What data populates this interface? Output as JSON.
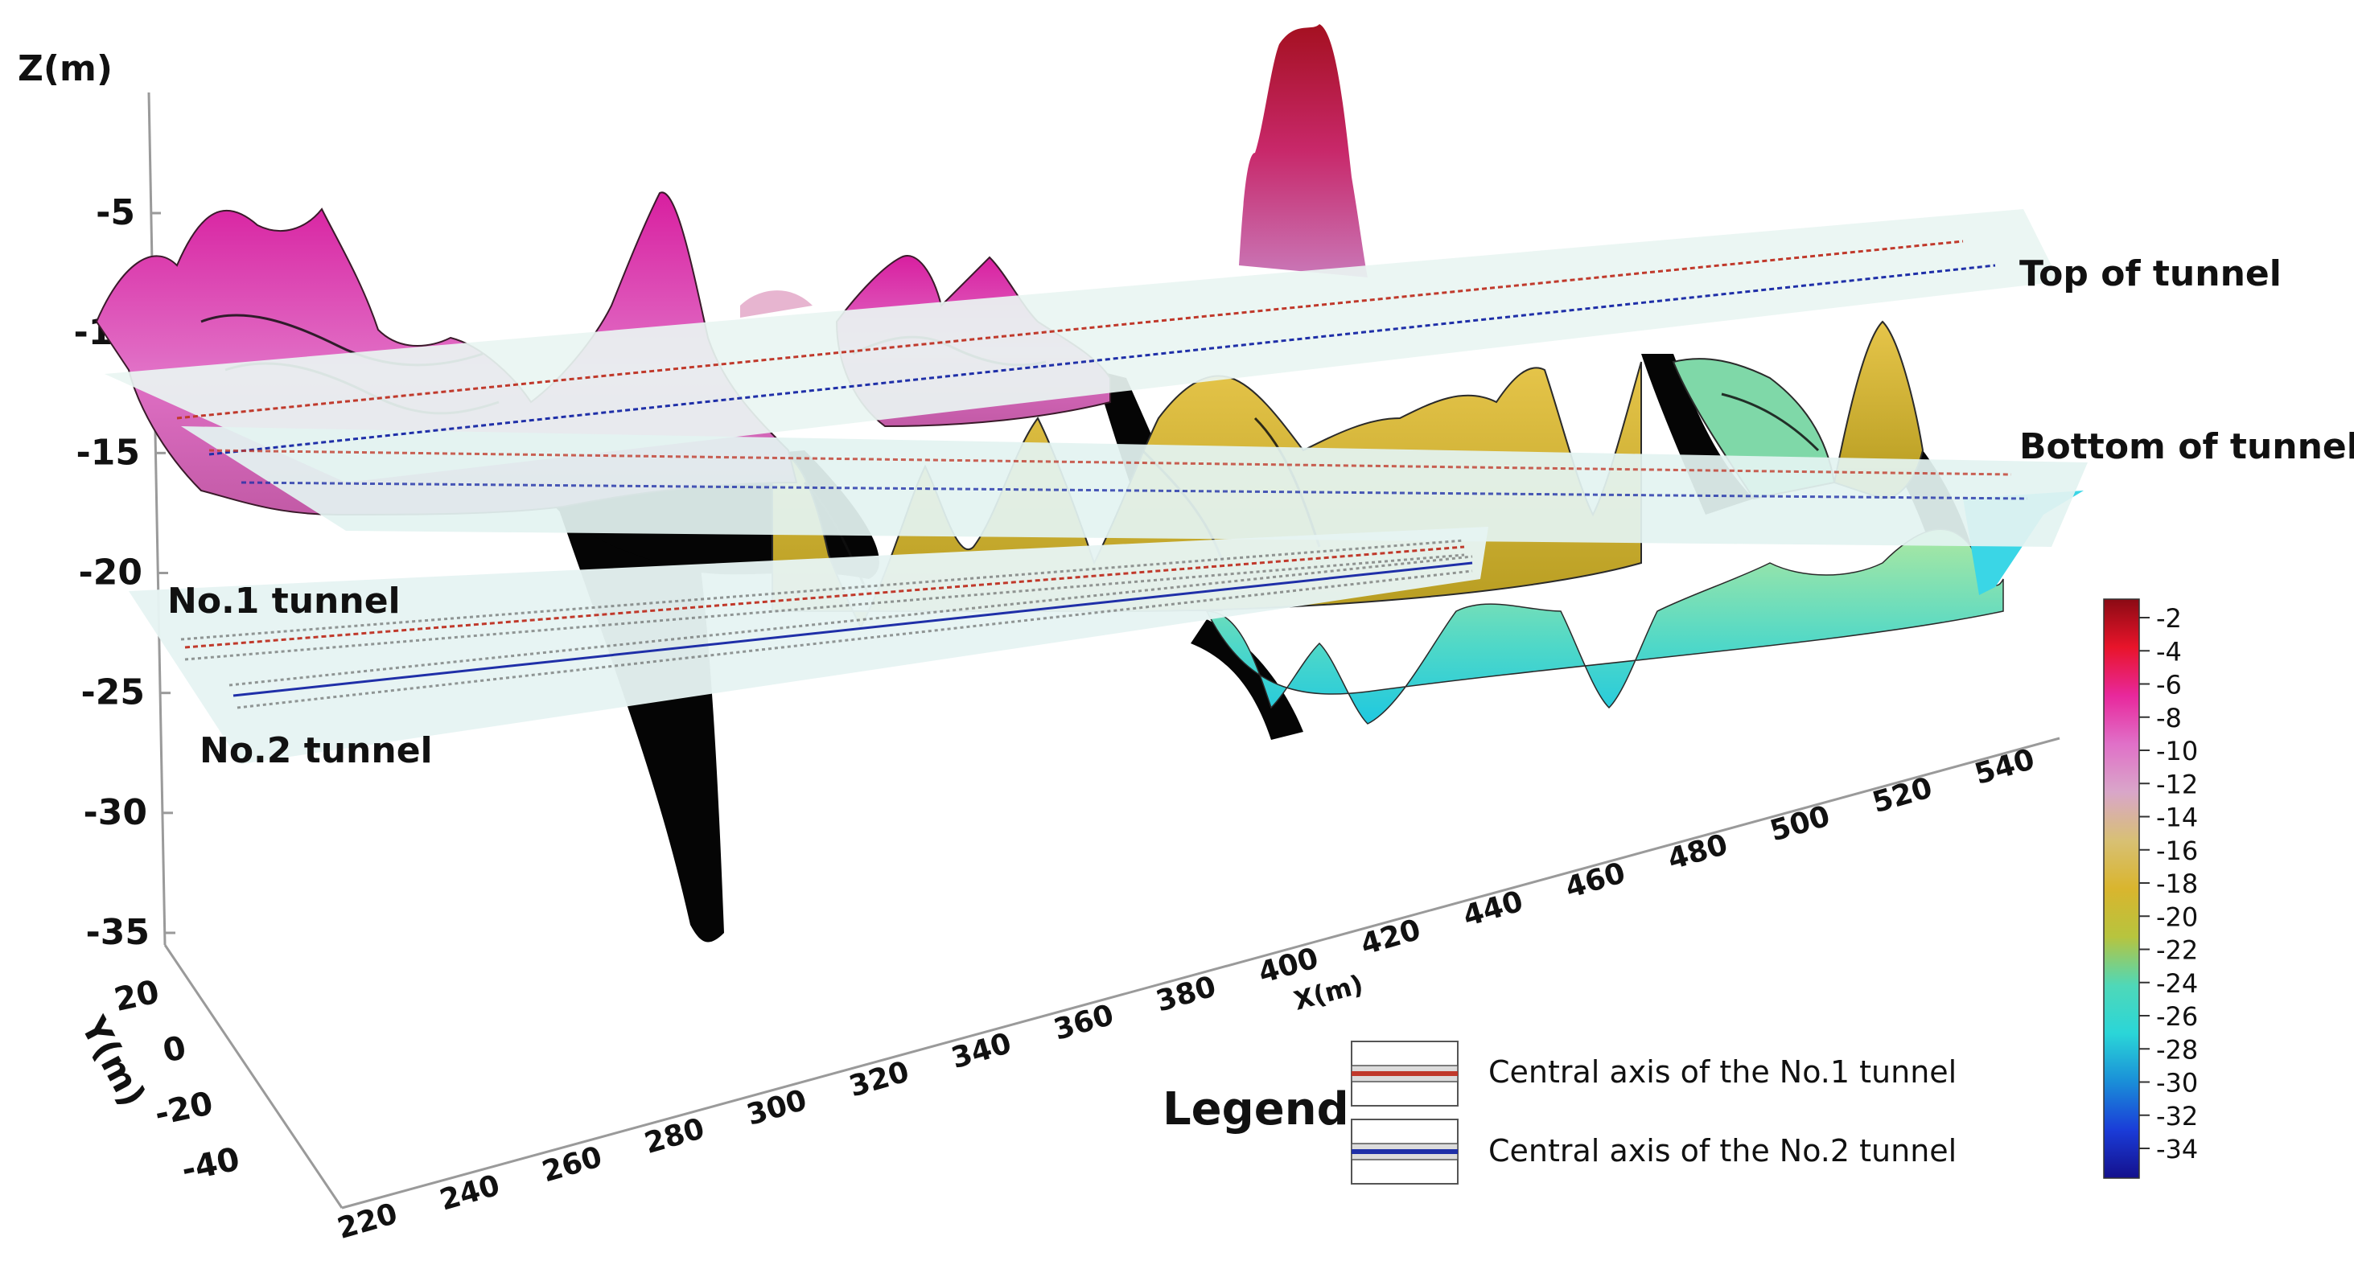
{
  "chart_data": {
    "type": "surface-3d",
    "axes": {
      "z": {
        "label": "Z(m)",
        "ticks": [
          "-5",
          "-10",
          "-15",
          "-20",
          "-25",
          "-30",
          "-35"
        ]
      },
      "y": {
        "label": "Y(m)",
        "ticks": [
          "20",
          "0",
          "-20",
          "-40"
        ]
      },
      "x": {
        "label": "X(m)",
        "ticks": [
          "220",
          "240",
          "260",
          "280",
          "300",
          "320",
          "340",
          "360",
          "380",
          "400",
          "420",
          "440",
          "460",
          "480",
          "500",
          "520",
          "540"
        ]
      }
    },
    "planes": [
      {
        "label": "Top of tunnel"
      },
      {
        "label": "Bottom of tunnel"
      }
    ],
    "tunnels": [
      {
        "label": "No.1 tunnel"
      },
      {
        "label": "No.2 tunnel"
      }
    ],
    "legend": {
      "title": "Legend",
      "items": [
        {
          "label": "Central axis of the No.1 tunnel",
          "color": "#c0392b"
        },
        {
          "label": "Central axis of the No.2 tunnel",
          "color": "#1f2fa8"
        }
      ]
    },
    "colorbar": {
      "ticks": [
        "-2",
        "-4",
        "-6",
        "-8",
        "-10",
        "-12",
        "-14",
        "-16",
        "-18",
        "-20",
        "-22",
        "-24",
        "-26",
        "-28",
        "-30",
        "-32",
        "-34"
      ],
      "colors": [
        "#8b0a14",
        "#e8142a",
        "#e8289c",
        "#e070c8",
        "#d9a6c9",
        "#d8c074",
        "#d9b52e",
        "#b7c43e",
        "#4fd8b8",
        "#2ad6d8",
        "#1a8fd8",
        "#1a3cd8",
        "#14108c"
      ]
    }
  }
}
